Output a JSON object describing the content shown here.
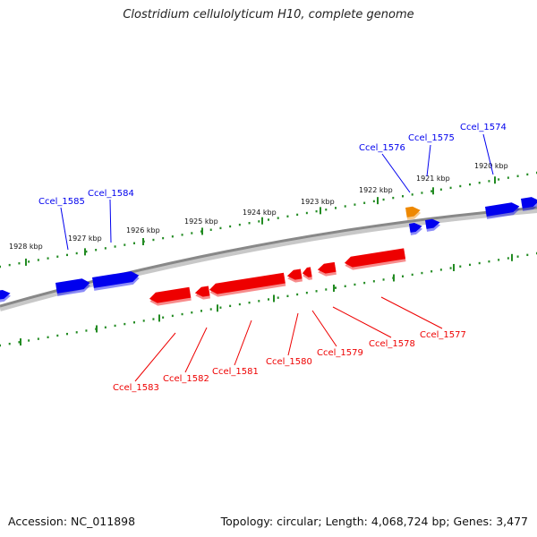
{
  "title": "Clostridium cellulolyticum H10, complete genome",
  "footer": {
    "accession": "Accession: NC_011898",
    "summary": "Topology: circular; Length: 4,068,724 bp; Genes: 3,477"
  },
  "colors": {
    "forward": "#0000ee",
    "reverse": "#ee0000",
    "highlight": "#ee8800",
    "tick": "#228b22",
    "backbone": "#888888"
  },
  "ticks": [
    {
      "label": "1920 kbp"
    },
    {
      "label": "1921 kbp"
    },
    {
      "label": "1922 kbp"
    },
    {
      "label": "1923 kbp"
    },
    {
      "label": "1924 kbp"
    },
    {
      "label": "1925 kbp"
    },
    {
      "label": "1926 kbp"
    },
    {
      "label": "1927 kbp"
    },
    {
      "label": "1928 kbp"
    }
  ],
  "forward_genes": [
    {
      "label": "Ccel_1574"
    },
    {
      "label": "Ccel_1575"
    },
    {
      "label": "Ccel_1576"
    },
    {
      "label": "Ccel_1584"
    },
    {
      "label": "Ccel_1585"
    }
  ],
  "reverse_genes": [
    {
      "label": "Ccel_1577"
    },
    {
      "label": "Ccel_1578"
    },
    {
      "label": "Ccel_1579"
    },
    {
      "label": "Ccel_1580"
    },
    {
      "label": "Ccel_1581"
    },
    {
      "label": "Ccel_1582"
    },
    {
      "label": "Ccel_1583"
    }
  ]
}
